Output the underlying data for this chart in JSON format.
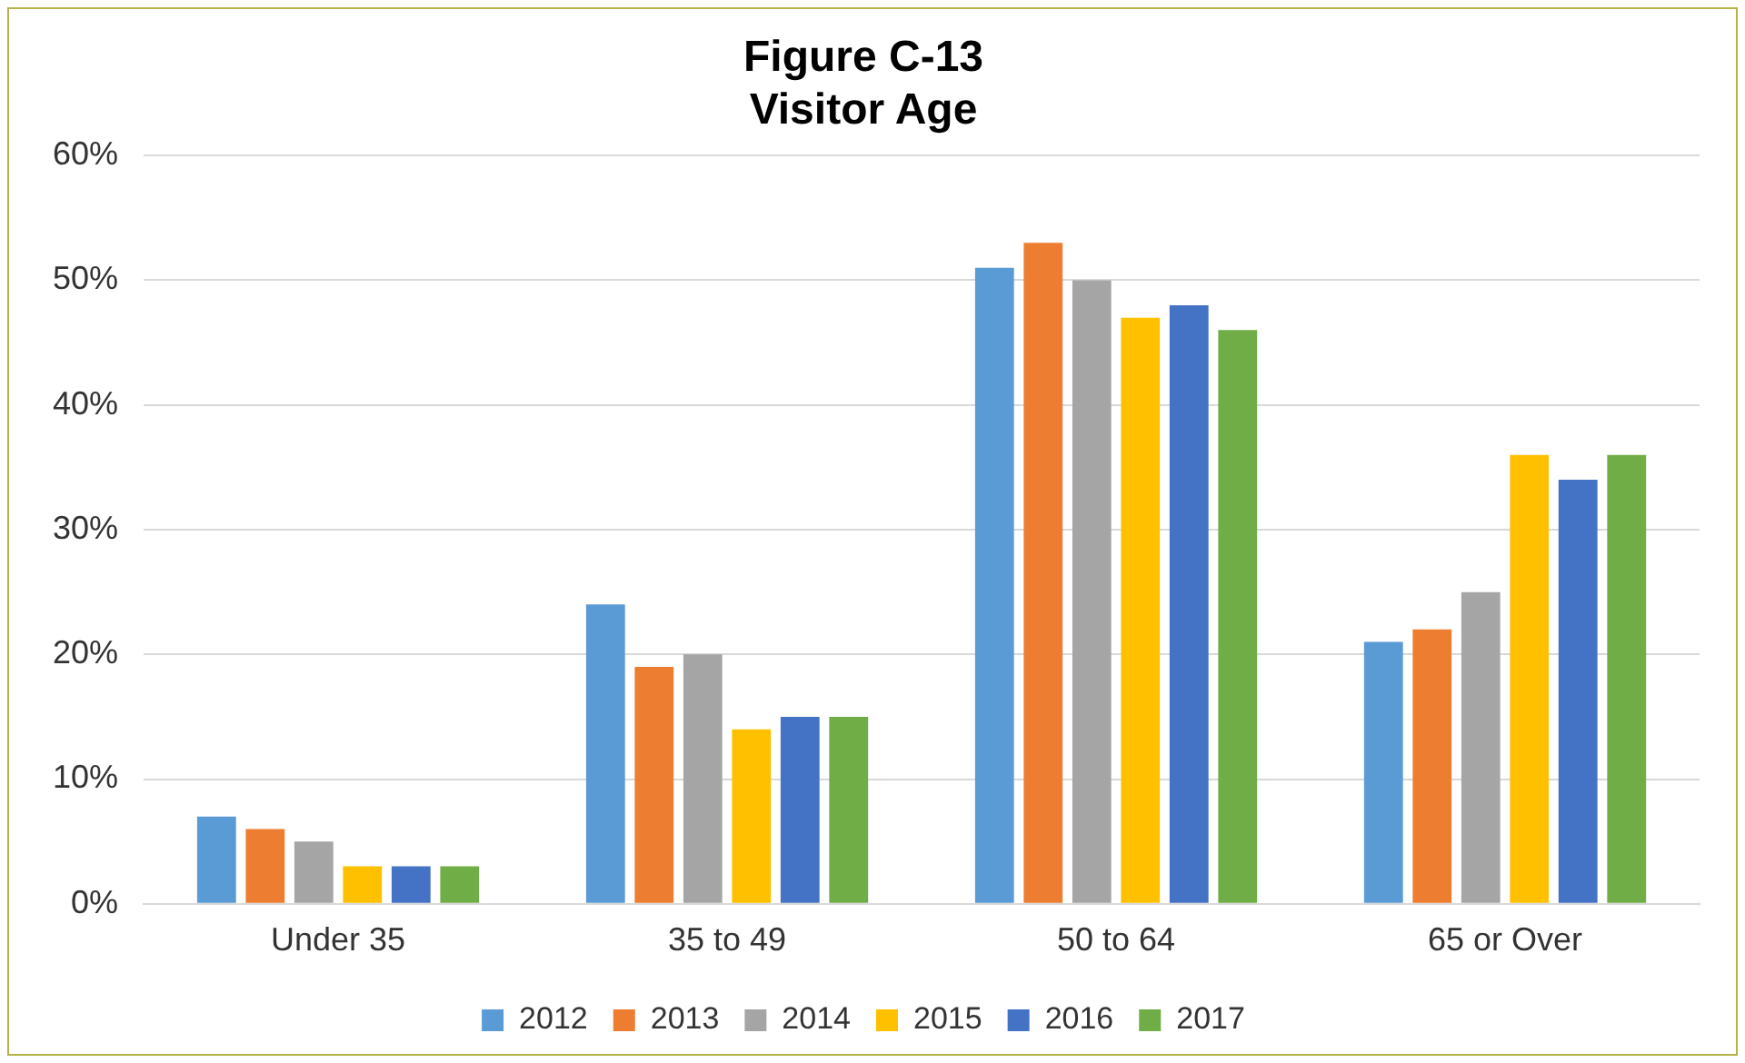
{
  "chart_data": {
    "type": "bar",
    "title": "Figure C-13\nVisitor Age",
    "categories": [
      "Under 35",
      "35 to 49",
      "50 to 64",
      "65 or Over"
    ],
    "series": [
      {
        "name": "2012",
        "color": "#5b9bd5",
        "values": [
          7,
          24,
          51,
          21
        ]
      },
      {
        "name": "2013",
        "color": "#ed7d31",
        "values": [
          6,
          19,
          53,
          22
        ]
      },
      {
        "name": "2014",
        "color": "#a5a5a5",
        "values": [
          5,
          20,
          50,
          25
        ]
      },
      {
        "name": "2015",
        "color": "#ffc000",
        "values": [
          3,
          14,
          47,
          36
        ]
      },
      {
        "name": "2016",
        "color": "#4472c4",
        "values": [
          3,
          15,
          48,
          34
        ]
      },
      {
        "name": "2017",
        "color": "#70ad47",
        "values": [
          3,
          15,
          46,
          36
        ]
      }
    ],
    "ylim": [
      0,
      60
    ],
    "yticks": [
      {
        "value": 0,
        "label": "0%"
      },
      {
        "value": 10,
        "label": "10%"
      },
      {
        "value": 20,
        "label": "20%"
      },
      {
        "value": 30,
        "label": "30%"
      },
      {
        "value": 40,
        "label": "40%"
      },
      {
        "value": 50,
        "label": "50%"
      },
      {
        "value": 60,
        "label": "60%"
      }
    ],
    "grid": "y",
    "legend": "bottom"
  }
}
